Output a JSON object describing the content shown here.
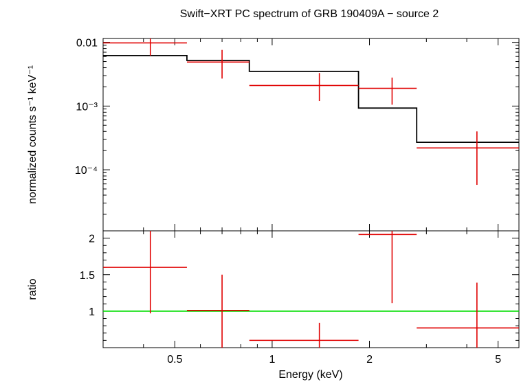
{
  "chart_data": [
    {
      "type": "line",
      "title": "Swift−XRT PC spectrum of GRB 190409A − source 2",
      "xlabel": "",
      "ylabel": "normalized counts s⁻¹ keV⁻¹",
      "x_scale": "log",
      "y_scale": "log",
      "xlim": [
        0.3,
        5.8
      ],
      "ylim": [
        1.1e-05,
        0.0115
      ],
      "y_ticks": [
        {
          "value": 0.01,
          "label": "0.01"
        },
        {
          "value": 0.001,
          "label": "10⁻³"
        },
        {
          "value": 0.0001,
          "label": "10⁻⁴"
        }
      ],
      "series": [
        {
          "kind": "data_points_with_errors",
          "color": "#e00000",
          "points": [
            {
              "x": 0.42,
              "xlo": 0.3,
              "xhi": 0.545,
              "y": 0.0098,
              "ylo": 0.0062,
              "yhi": 0.0125
            },
            {
              "x": 0.7,
              "xlo": 0.545,
              "xhi": 0.85,
              "y": 0.0049,
              "ylo": 0.0027,
              "yhi": 0.0076
            },
            {
              "x": 1.4,
              "xlo": 0.85,
              "xhi": 1.85,
              "y": 0.0021,
              "ylo": 0.0012,
              "yhi": 0.0033
            },
            {
              "x": 2.35,
              "xlo": 1.85,
              "xhi": 2.8,
              "y": 0.0019,
              "ylo": 0.00105,
              "yhi": 0.0028
            },
            {
              "x": 4.3,
              "xlo": 2.8,
              "xhi": 5.8,
              "y": 0.00022,
              "ylo": 5.8e-05,
              "yhi": 0.0004
            }
          ]
        },
        {
          "kind": "model_step",
          "color": "#000000",
          "steps": [
            {
              "xlo": 0.3,
              "xhi": 0.545,
              "y": 0.0062
            },
            {
              "xlo": 0.545,
              "xhi": 0.85,
              "y": 0.0052
            },
            {
              "xlo": 0.85,
              "xhi": 1.85,
              "y": 0.0035
            },
            {
              "xlo": 1.85,
              "xhi": 2.8,
              "y": 0.00093
            },
            {
              "xlo": 2.8,
              "xhi": 5.8,
              "y": 0.00027
            }
          ]
        }
      ]
    },
    {
      "type": "scatter",
      "title": "",
      "xlabel": "Energy (keV)",
      "ylabel": "ratio",
      "x_scale": "log",
      "y_scale": "linear",
      "xlim": [
        0.3,
        5.8
      ],
      "ylim": [
        0.5,
        2.1
      ],
      "x_ticks": [
        {
          "value": 0.5,
          "label": "0.5"
        },
        {
          "value": 1,
          "label": "1"
        },
        {
          "value": 2,
          "label": "2"
        },
        {
          "value": 5,
          "label": "5"
        }
      ],
      "y_ticks": [
        {
          "value": 1,
          "label": "1"
        },
        {
          "value": 1.5,
          "label": "1.5"
        },
        {
          "value": 2,
          "label": "2"
        }
      ],
      "reference_line": {
        "y": 1,
        "color": "#00dd00"
      },
      "series": [
        {
          "kind": "data_points_with_errors",
          "color": "#e00000",
          "points": [
            {
              "x": 0.42,
              "xlo": 0.3,
              "xhi": 0.545,
              "y": 1.6,
              "ylo": 0.97,
              "yhi": 2.12
            },
            {
              "x": 0.7,
              "xlo": 0.545,
              "xhi": 0.85,
              "y": 1.01,
              "ylo": 0.5,
              "yhi": 1.5
            },
            {
              "x": 1.4,
              "xlo": 0.85,
              "xhi": 1.85,
              "y": 0.6,
              "ylo": 0.5,
              "yhi": 0.84
            },
            {
              "x": 2.35,
              "xlo": 1.85,
              "xhi": 2.8,
              "y": 2.05,
              "ylo": 1.11,
              "yhi": 2.15
            },
            {
              "x": 4.3,
              "xlo": 2.8,
              "xhi": 5.8,
              "y": 0.77,
              "ylo": 0.5,
              "yhi": 1.39
            }
          ]
        }
      ]
    }
  ]
}
